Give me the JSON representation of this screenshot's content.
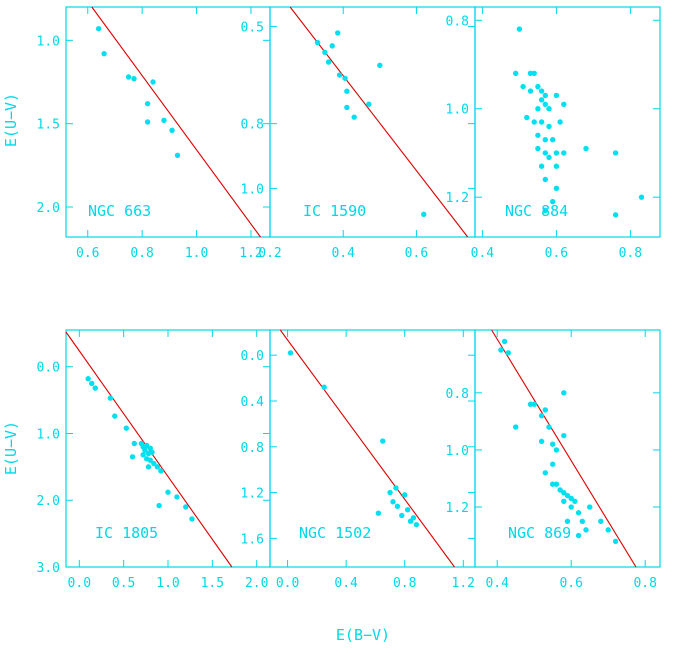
{
  "figure": {
    "ylabel": "E(U−V)",
    "xlabel": "E(B−V)"
  },
  "colors": {
    "frame": "#00d8e8",
    "points": "#00e0f0",
    "fit_line": "#dd0000",
    "text": "#00d8e8",
    "background": "#ffffff"
  },
  "chart_data": [
    {
      "type": "scatter",
      "name": "NGC 663",
      "xlim": [
        0.52,
        1.27
      ],
      "ylim": [
        2.18,
        0.8
      ],
      "xticks": [
        "0.6",
        "0.8",
        "1.0",
        "1.2"
      ],
      "yticks": [
        "1.0",
        "1.5",
        "2.0"
      ],
      "fit_line": [
        [
          0.615,
          0.8
        ],
        [
          1.235,
          2.18
        ]
      ],
      "points": [
        [
          0.64,
          0.93
        ],
        [
          0.66,
          1.08
        ],
        [
          0.75,
          1.22
        ],
        [
          0.77,
          1.23
        ],
        [
          0.84,
          1.25
        ],
        [
          0.82,
          1.38
        ],
        [
          0.82,
          1.49
        ],
        [
          0.88,
          1.48
        ],
        [
          0.91,
          1.54
        ],
        [
          0.93,
          1.69
        ]
      ]
    },
    {
      "type": "scatter",
      "name": "IC 1590",
      "xlim": [
        0.2,
        0.76
      ],
      "ylim": [
        1.15,
        0.44
      ],
      "xticks": [
        "0.2",
        "0.4",
        "0.6"
      ],
      "yticks": [
        "0.5",
        "0.8",
        "1.0"
      ],
      "fit_line": [
        [
          0.255,
          0.44
        ],
        [
          0.74,
          1.15
        ]
      ],
      "points": [
        [
          0.33,
          0.55
        ],
        [
          0.35,
          0.58
        ],
        [
          0.36,
          0.61
        ],
        [
          0.37,
          0.56
        ],
        [
          0.385,
          0.52
        ],
        [
          0.39,
          0.65
        ],
        [
          0.405,
          0.66
        ],
        [
          0.41,
          0.7
        ],
        [
          0.41,
          0.75
        ],
        [
          0.43,
          0.78
        ],
        [
          0.5,
          0.62
        ],
        [
          0.47,
          0.74
        ],
        [
          0.62,
          1.08
        ]
      ]
    },
    {
      "type": "scatter",
      "name": "NGC 884",
      "xlim": [
        0.38,
        0.88
      ],
      "ylim": [
        1.29,
        0.77
      ],
      "xticks": [
        "0.4",
        "0.6",
        "0.8"
      ],
      "yticks": [
        "0.8",
        "1.0",
        "1.2"
      ],
      "fit_line": null,
      "points": [
        [
          0.5,
          0.82
        ],
        [
          0.49,
          0.92
        ],
        [
          0.51,
          0.95
        ],
        [
          0.53,
          0.96
        ],
        [
          0.53,
          0.92
        ],
        [
          0.54,
          0.92
        ],
        [
          0.55,
          0.95
        ],
        [
          0.56,
          0.96
        ],
        [
          0.56,
          0.98
        ],
        [
          0.57,
          0.97
        ],
        [
          0.57,
          0.99
        ],
        [
          0.58,
          1.0
        ],
        [
          0.55,
          1.0
        ],
        [
          0.6,
          0.97
        ],
        [
          0.62,
          0.99
        ],
        [
          0.52,
          1.02
        ],
        [
          0.54,
          1.03
        ],
        [
          0.56,
          1.03
        ],
        [
          0.58,
          1.04
        ],
        [
          0.61,
          1.03
        ],
        [
          0.55,
          1.06
        ],
        [
          0.57,
          1.07
        ],
        [
          0.59,
          1.07
        ],
        [
          0.55,
          1.09
        ],
        [
          0.57,
          1.1
        ],
        [
          0.58,
          1.11
        ],
        [
          0.56,
          1.13
        ],
        [
          0.6,
          1.1
        ],
        [
          0.62,
          1.1
        ],
        [
          0.6,
          1.13
        ],
        [
          0.57,
          1.16
        ],
        [
          0.6,
          1.18
        ],
        [
          0.59,
          1.21
        ],
        [
          0.57,
          1.23
        ],
        [
          0.68,
          1.09
        ],
        [
          0.76,
          1.1
        ],
        [
          0.76,
          1.24
        ],
        [
          0.83,
          1.2
        ]
      ]
    },
    {
      "type": "scatter",
      "name": "IC 1805",
      "xlim": [
        -0.15,
        2.15
      ],
      "ylim": [
        3.0,
        -0.55
      ],
      "xticks": [
        "0.0",
        "0.5",
        "1.0",
        "1.5",
        "2.0"
      ],
      "yticks": [
        "0.0",
        "1.0",
        "2.0",
        "3.0"
      ],
      "fit_line": [
        [
          -0.15,
          -0.52
        ],
        [
          1.72,
          3.0
        ]
      ],
      "points": [
        [
          0.1,
          0.18
        ],
        [
          0.14,
          0.25
        ],
        [
          0.18,
          0.32
        ],
        [
          0.35,
          0.47
        ],
        [
          0.4,
          0.74
        ],
        [
          0.53,
          0.92
        ],
        [
          0.62,
          1.15
        ],
        [
          0.6,
          1.35
        ],
        [
          0.7,
          1.15
        ],
        [
          0.72,
          1.2
        ],
        [
          0.74,
          1.25
        ],
        [
          0.76,
          1.18
        ],
        [
          0.78,
          1.3
        ],
        [
          0.8,
          1.22
        ],
        [
          0.82,
          1.28
        ],
        [
          0.72,
          1.32
        ],
        [
          0.76,
          1.38
        ],
        [
          0.8,
          1.4
        ],
        [
          0.84,
          1.45
        ],
        [
          0.88,
          1.5
        ],
        [
          0.92,
          1.56
        ],
        [
          0.78,
          1.5
        ],
        [
          0.9,
          2.08
        ],
        [
          1.0,
          1.88
        ],
        [
          1.1,
          1.95
        ],
        [
          1.2,
          2.1
        ],
        [
          1.27,
          2.28
        ]
      ]
    },
    {
      "type": "scatter",
      "name": "NGC 1502",
      "xlim": [
        -0.12,
        1.28
      ],
      "ylim": [
        1.85,
        -0.22
      ],
      "xticks": [
        "0.0",
        "0.4",
        "0.8",
        "1.2"
      ],
      "yticks": [
        "0.0",
        "0.4",
        "0.8",
        "1.2",
        "1.6"
      ],
      "fit_line": [
        [
          -0.05,
          -0.22
        ],
        [
          1.14,
          1.85
        ]
      ],
      "points": [
        [
          0.02,
          -0.02
        ],
        [
          0.25,
          0.28
        ],
        [
          0.65,
          0.75
        ],
        [
          0.62,
          1.38
        ],
        [
          0.7,
          1.2
        ],
        [
          0.72,
          1.28
        ],
        [
          0.74,
          1.16
        ],
        [
          0.75,
          1.32
        ],
        [
          0.78,
          1.4
        ],
        [
          0.8,
          1.22
        ],
        [
          0.82,
          1.35
        ],
        [
          0.84,
          1.45
        ],
        [
          0.86,
          1.42
        ],
        [
          0.88,
          1.48
        ]
      ]
    },
    {
      "type": "scatter",
      "name": "NGC 869",
      "xlim": [
        0.34,
        0.84
      ],
      "ylim": [
        1.41,
        0.58
      ],
      "xticks": [
        "0.4",
        "0.6",
        "0.8"
      ],
      "yticks": [
        "0.8",
        "1.0",
        "1.2"
      ],
      "fit_line": [
        [
          0.385,
          0.58
        ],
        [
          0.775,
          1.41
        ]
      ],
      "points": [
        [
          0.42,
          0.62
        ],
        [
          0.43,
          0.66
        ],
        [
          0.41,
          0.65
        ],
        [
          0.49,
          0.84
        ],
        [
          0.52,
          0.88
        ],
        [
          0.5,
          0.84
        ],
        [
          0.45,
          0.92
        ],
        [
          0.52,
          0.97
        ],
        [
          0.54,
          0.92
        ],
        [
          0.55,
          0.98
        ],
        [
          0.56,
          1.0
        ],
        [
          0.58,
          0.8
        ],
        [
          0.53,
          0.86
        ],
        [
          0.58,
          0.95
        ],
        [
          0.55,
          1.05
        ],
        [
          0.53,
          1.08
        ],
        [
          0.55,
          1.12
        ],
        [
          0.56,
          1.12
        ],
        [
          0.57,
          1.14
        ],
        [
          0.58,
          1.15
        ],
        [
          0.59,
          1.16
        ],
        [
          0.6,
          1.17
        ],
        [
          0.61,
          1.18
        ],
        [
          0.58,
          1.18
        ],
        [
          0.6,
          1.2
        ],
        [
          0.62,
          1.22
        ],
        [
          0.59,
          1.25
        ],
        [
          0.63,
          1.25
        ],
        [
          0.65,
          1.2
        ],
        [
          0.68,
          1.25
        ],
        [
          0.7,
          1.28
        ],
        [
          0.72,
          1.32
        ],
        [
          0.62,
          1.3
        ],
        [
          0.64,
          1.28
        ]
      ]
    }
  ]
}
